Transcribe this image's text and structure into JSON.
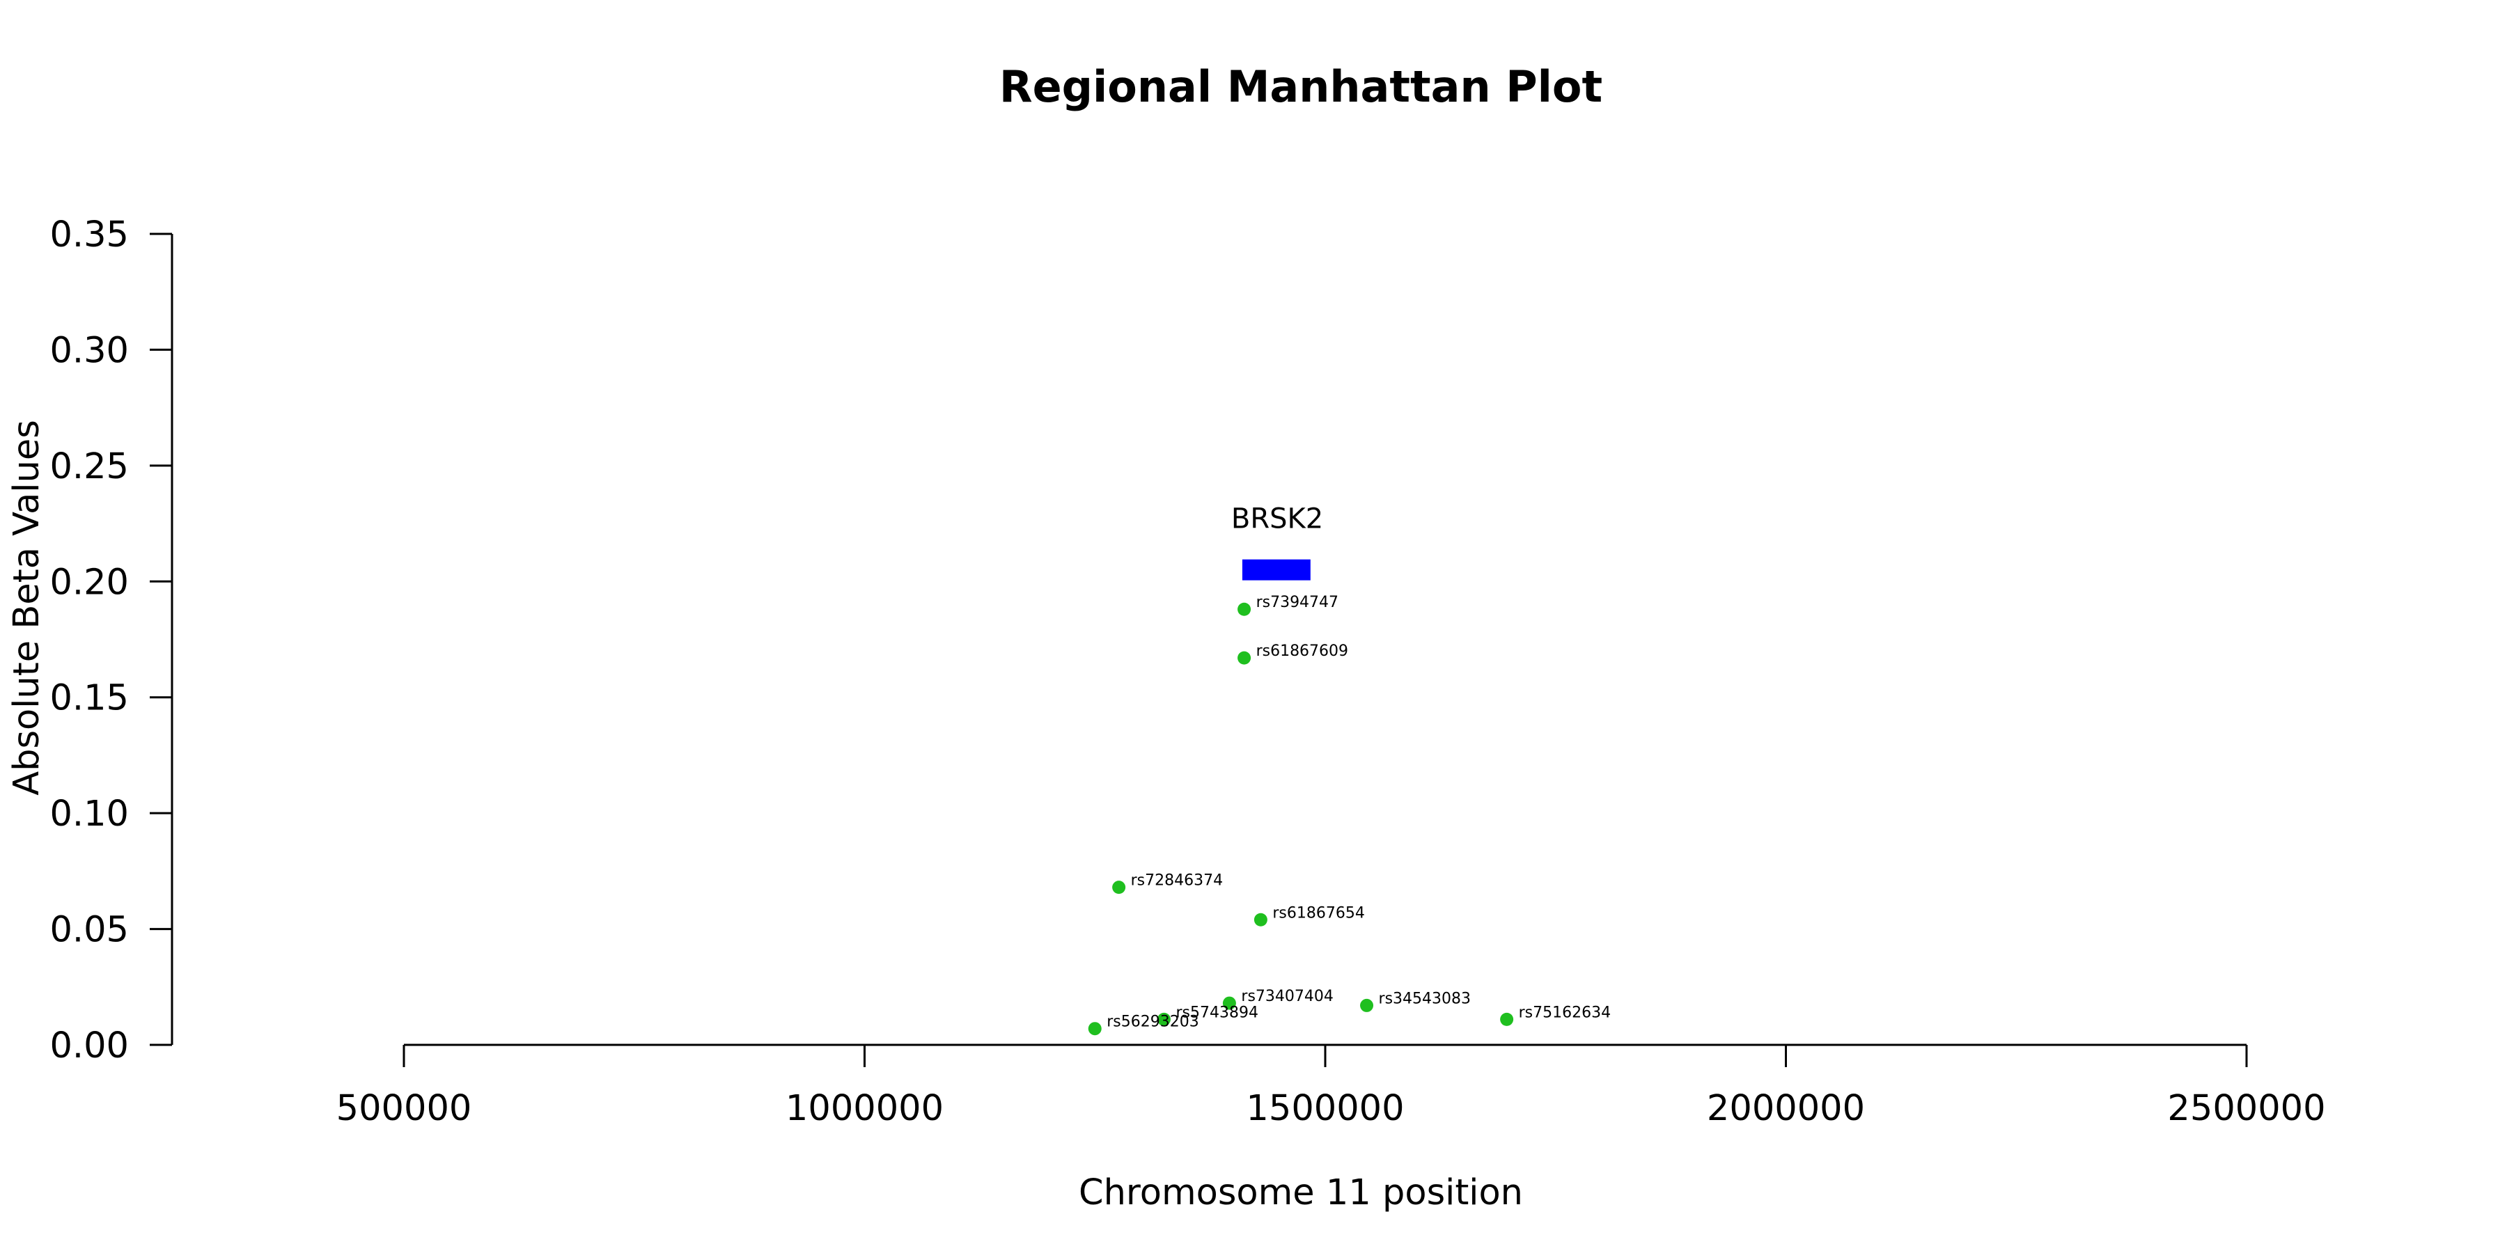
{
  "chart_data": {
    "type": "scatter",
    "title": "Regional Manhattan Plot",
    "xlabel": "Chromosome 11 position",
    "ylabel": "Absolute Beta Values",
    "xlim": [
      500000,
      2500000
    ],
    "ylim": [
      0,
      0.35
    ],
    "x_ticks": [
      500000,
      1000000,
      1500000,
      2000000,
      2500000
    ],
    "x_tick_labels": [
      "500000",
      "1000000",
      "1500000",
      "2000000",
      "2500000"
    ],
    "y_ticks": [
      0,
      0.05,
      0.1,
      0.15,
      0.2,
      0.25,
      0.3,
      0.35
    ],
    "y_tick_labels": [
      "0.00",
      "0.05",
      "0.10",
      "0.15",
      "0.20",
      "0.25",
      "0.30",
      "0.35"
    ],
    "grid": false,
    "point_color": "#1fbf1f",
    "points": [
      {
        "label": "rs7394747",
        "x": 1412000,
        "y": 0.188
      },
      {
        "label": "rs61867609",
        "x": 1412000,
        "y": 0.167
      },
      {
        "label": "rs72846374",
        "x": 1276000,
        "y": 0.068
      },
      {
        "label": "rs61867654",
        "x": 1430000,
        "y": 0.054
      },
      {
        "label": "rs73407404",
        "x": 1396000,
        "y": 0.018
      },
      {
        "label": "rs34543083",
        "x": 1545000,
        "y": 0.017
      },
      {
        "label": "rs75162634",
        "x": 1697000,
        "y": 0.011
      },
      {
        "label": "rs5743894",
        "x": 1325000,
        "y": 0.011
      },
      {
        "label": "rs56293203",
        "x": 1250000,
        "y": 0.007
      }
    ],
    "genes": [
      {
        "name": "BRSK2",
        "start": 1410000,
        "end": 1484000,
        "y": 0.205,
        "color": "#0000ff"
      }
    ]
  }
}
